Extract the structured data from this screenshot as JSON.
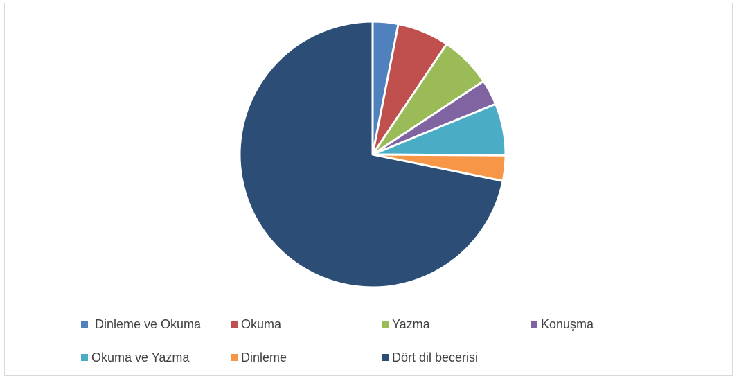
{
  "chart_data": {
    "type": "pie",
    "title": "",
    "legend_position": "bottom",
    "categories": [
      " Dinleme ve Okuma",
      "Okuma",
      "Yazma",
      "Konuşma",
      "Okuma ve Yazma",
      "Dinleme",
      "Dört dil becerisi"
    ],
    "values": [
      3.1,
      6.3,
      6.3,
      3.1,
      6.3,
      3.1,
      71.8
    ],
    "colors": [
      "#4f81bd",
      "#c0504d",
      "#9bbb59",
      "#8064a2",
      "#4bacc6",
      "#f79646",
      "#2c4d75"
    ]
  }
}
